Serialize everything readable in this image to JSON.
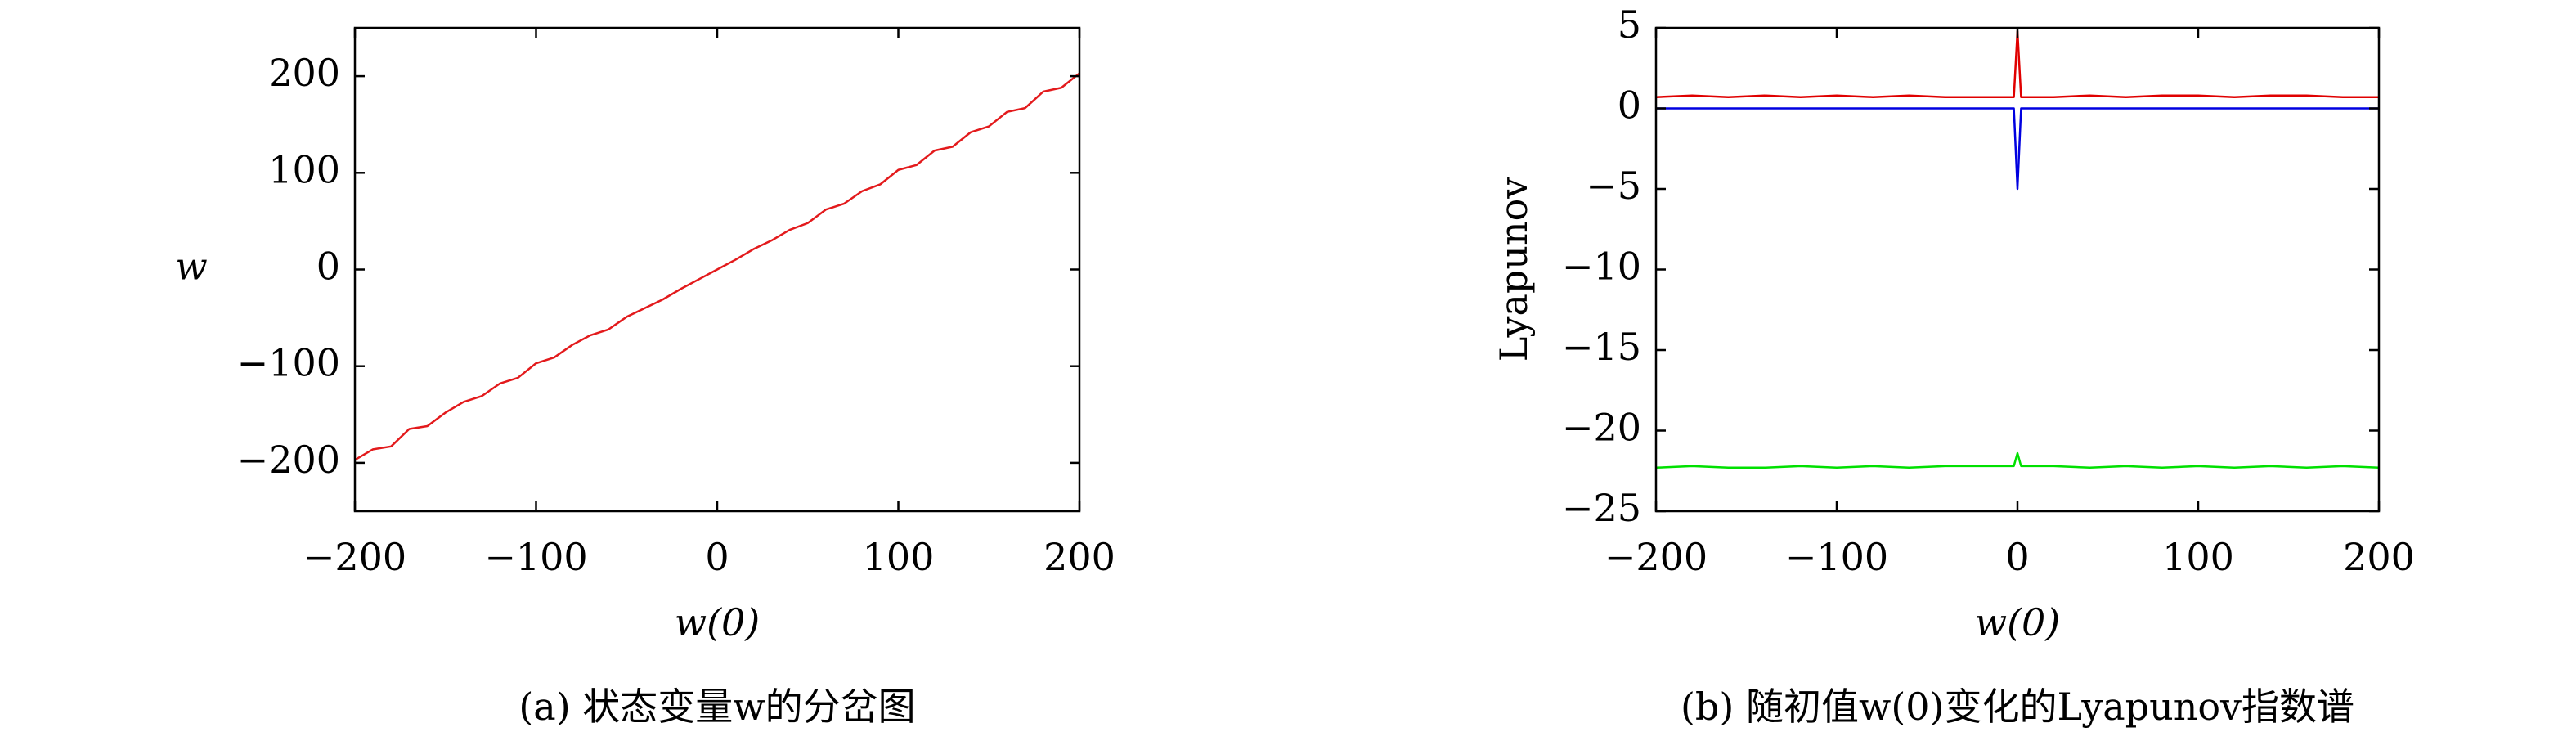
{
  "chart_data": [
    {
      "type": "line",
      "caption": "(a) 状态变量w的分岔图",
      "xlabel": "w(0)",
      "ylabel": "w",
      "xlim": [
        -200,
        200
      ],
      "ylim": [
        -250,
        250
      ],
      "xticks": [
        {
          "value": -200,
          "label": "−200"
        },
        {
          "value": -100,
          "label": "−100"
        },
        0,
        100,
        200
      ],
      "yticks": [
        {
          "value": -200,
          "label": "−200"
        },
        {
          "value": -100,
          "label": "−100"
        },
        0,
        100,
        200
      ],
      "x": [
        -200,
        -190,
        -180,
        -170,
        -160,
        -150,
        -140,
        -130,
        -120,
        -110,
        -100,
        -90,
        -80,
        -70,
        -60,
        -50,
        -40,
        -30,
        -20,
        -10,
        0,
        10,
        20,
        30,
        40,
        50,
        60,
        70,
        80,
        90,
        100,
        110,
        120,
        130,
        140,
        150,
        160,
        170,
        180,
        190,
        200
      ],
      "series": [
        {
          "color": "#e31a1c",
          "values": [
            -197,
            -186,
            -183,
            -165,
            -162,
            -148,
            -137,
            -131,
            -118,
            -112,
            -97,
            -91,
            -78,
            -68,
            -62,
            -49,
            -40,
            -31,
            -20,
            -10,
            0,
            10,
            21,
            30,
            41,
            48,
            62,
            68,
            81,
            88,
            103,
            108,
            123,
            127,
            142,
            148,
            163,
            167,
            184,
            188,
            203
          ]
        }
      ]
    },
    {
      "type": "line",
      "caption": "(b) 随初值w(0)变化的Lyapunov指数谱",
      "xlabel": "w(0)",
      "ylabel": "Lyapunov",
      "xlim": [
        -200,
        200
      ],
      "ylim": [
        -25,
        5
      ],
      "xticks": [
        {
          "value": -200,
          "label": "−200"
        },
        {
          "value": -100,
          "label": "−100"
        },
        0,
        100,
        200
      ],
      "yticks": [
        5,
        0,
        {
          "value": -5,
          "label": "−5"
        },
        {
          "value": -10,
          "label": "−10"
        },
        {
          "value": -15,
          "label": "−15"
        },
        {
          "value": -20,
          "label": "−20"
        },
        {
          "value": -25,
          "label": "−25"
        }
      ],
      "x": [
        -200,
        -180,
        -160,
        -140,
        -120,
        -100,
        -80,
        -60,
        -40,
        -20,
        -2,
        0,
        2,
        20,
        40,
        60,
        80,
        100,
        120,
        140,
        160,
        180,
        200
      ],
      "series": [
        {
          "color": "#e00000",
          "values": [
            0.7,
            0.8,
            0.7,
            0.8,
            0.7,
            0.8,
            0.7,
            0.8,
            0.7,
            0.7,
            0.7,
            4.8,
            0.7,
            0.7,
            0.8,
            0.7,
            0.8,
            0.8,
            0.7,
            0.8,
            0.8,
            0.7,
            0.7
          ]
        },
        {
          "color": "#0000e0",
          "values": [
            0,
            0,
            0,
            0,
            0,
            0,
            0,
            0,
            0,
            0,
            0,
            -5,
            0,
            0,
            0,
            0,
            0,
            0,
            0,
            0,
            0,
            0,
            0
          ]
        },
        {
          "color": "#00e000",
          "values": [
            -22.3,
            -22.2,
            -22.3,
            -22.3,
            -22.2,
            -22.3,
            -22.2,
            -22.3,
            -22.2,
            -22.2,
            -22.2,
            -21.4,
            -22.2,
            -22.2,
            -22.3,
            -22.2,
            -22.3,
            -22.2,
            -22.3,
            -22.2,
            -22.3,
            -22.2,
            -22.3
          ]
        }
      ]
    }
  ]
}
